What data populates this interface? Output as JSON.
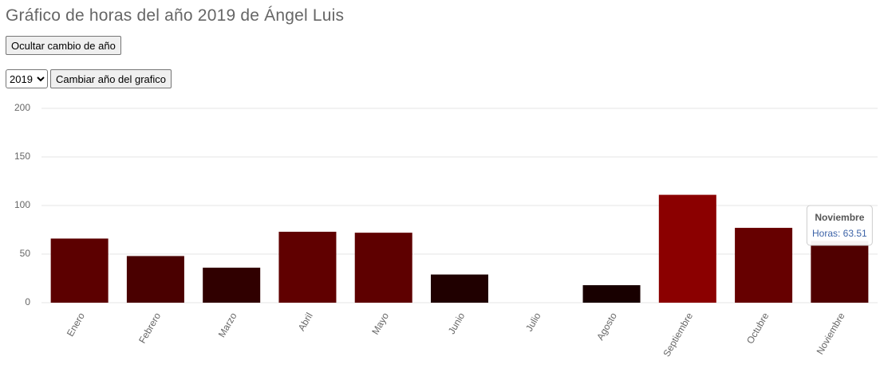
{
  "page": {
    "title": "Gráfico de horas del año 2019 de Ángel Luis"
  },
  "controls": {
    "toggle_button": "Ocultar cambio de año",
    "year_options": [
      "2019"
    ],
    "change_button": "Cambiar año del grafico"
  },
  "chart_data": {
    "type": "bar",
    "categories": [
      "Enero",
      "Febrero",
      "Marzo",
      "Abril",
      "Mayo",
      "Junio",
      "Julio",
      "Agosto",
      "Septiembre",
      "Octubre",
      "Noviembre"
    ],
    "values": [
      66,
      48,
      36,
      73,
      72,
      29,
      0,
      18,
      111,
      77,
      63.51
    ],
    "colors": [
      "#5c0000",
      "#4a0000",
      "#300000",
      "#600000",
      "#5e0000",
      "#200000",
      "#000000",
      "#180000",
      "#8b0000",
      "#660000",
      "#500000"
    ],
    "ylim": [
      0,
      200
    ],
    "yticks": [
      0,
      50,
      100,
      150,
      200
    ],
    "grid": true,
    "tooltip": {
      "title": "Noviembre",
      "text": "Horas: 63.51"
    }
  }
}
